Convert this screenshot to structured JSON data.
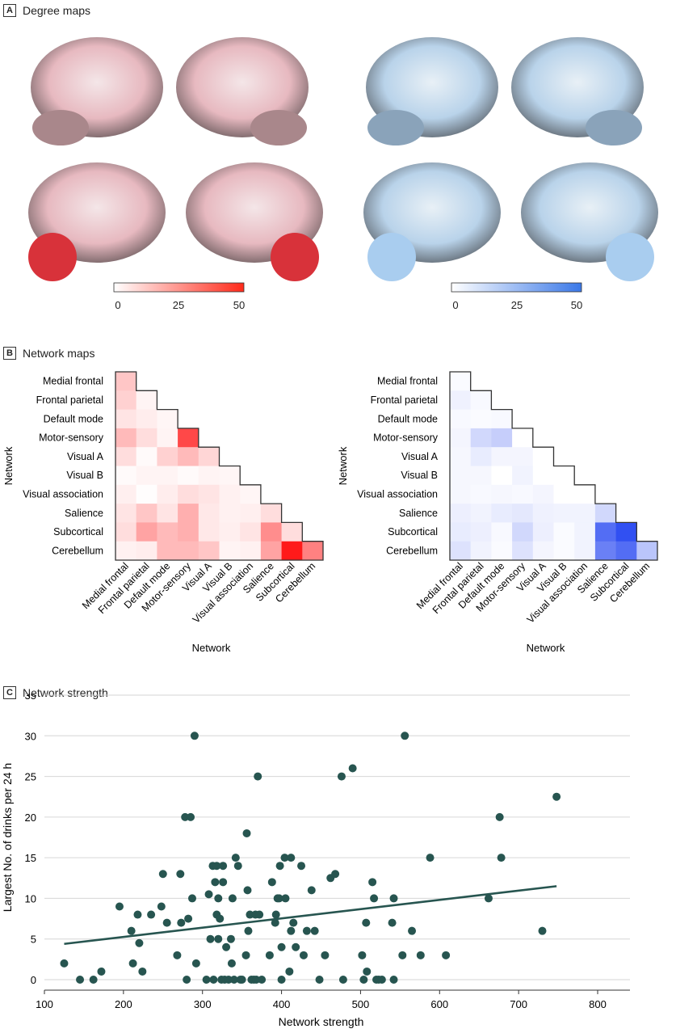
{
  "panels": {
    "a": {
      "letter": "A",
      "title": "Degree maps"
    },
    "b": {
      "letter": "B",
      "title": "Network maps"
    },
    "c": {
      "letter": "C",
      "title": "Network strength"
    }
  },
  "colorbars": [
    {
      "ticks": [
        "0",
        "25",
        "50"
      ],
      "color_low": "#ffffff",
      "color_high": "#ff2a1a"
    },
    {
      "ticks": [
        "0",
        "25",
        "50"
      ],
      "color_low": "#ffffff",
      "color_high": "#3a78e8"
    }
  ],
  "chart_data": [
    {
      "type": "heatmap",
      "xlabel": "Network",
      "ylabel": "Network",
      "labels": [
        "Medial frontal",
        "Frontal parietal",
        "Default mode",
        "Motor-sensory",
        "Visual A",
        "Visual B",
        "Visual association",
        "Salience",
        "Subcortical",
        "Cerebellum"
      ],
      "color": "#ff1a1a",
      "scale": [
        0,
        1
      ],
      "values": [
        [
          0.25
        ],
        [
          0.2,
          0.05
        ],
        [
          0.12,
          0.08,
          0.04
        ],
        [
          0.3,
          0.15,
          0.05,
          0.8
        ],
        [
          0.15,
          0.02,
          0.2,
          0.3,
          0.18
        ],
        [
          0.02,
          0.05,
          0.05,
          0.02,
          0.05,
          0.04
        ],
        [
          0.07,
          0.01,
          0.08,
          0.15,
          0.12,
          0.06,
          0.04
        ],
        [
          0.12,
          0.25,
          0.12,
          0.35,
          0.1,
          0.06,
          0.07,
          0.15
        ],
        [
          0.15,
          0.4,
          0.3,
          0.35,
          0.1,
          0.07,
          0.12,
          0.5,
          0.15
        ],
        [
          0.06,
          0.08,
          0.3,
          0.3,
          0.25,
          0.05,
          0.06,
          0.4,
          1.0,
          0.55
        ]
      ]
    },
    {
      "type": "heatmap",
      "xlabel": "Network",
      "ylabel": "Network",
      "labels": [
        "Medial frontal",
        "Frontal parietal",
        "Default mode",
        "Motor-sensory",
        "Visual A",
        "Visual B",
        "Visual association",
        "Salience",
        "Subcortical",
        "Cerebellum"
      ],
      "color": "#1a3cf0",
      "scale": [
        0,
        1
      ],
      "values": [
        [
          0.02
        ],
        [
          0.07,
          0.03
        ],
        [
          0.03,
          0.02,
          0.03
        ],
        [
          0.05,
          0.2,
          0.25,
          0.0
        ],
        [
          0.04,
          0.1,
          0.05,
          0.05,
          0.0
        ],
        [
          0.04,
          0.04,
          0.0,
          0.06,
          0.0,
          0.0
        ],
        [
          0.04,
          0.03,
          0.04,
          0.03,
          0.05,
          0.0,
          0.0
        ],
        [
          0.08,
          0.06,
          0.1,
          0.12,
          0.07,
          0.06,
          0.06,
          0.2
        ],
        [
          0.1,
          0.08,
          0.03,
          0.2,
          0.08,
          0.02,
          0.06,
          0.75,
          0.9
        ],
        [
          0.15,
          0.06,
          0.02,
          0.15,
          0.05,
          0.02,
          0.06,
          0.65,
          0.75,
          0.3
        ]
      ]
    },
    {
      "type": "scatter",
      "xlabel": "Network strength",
      "ylabel": "Largest No. of drinks per 24 h",
      "xlim": [
        100,
        840
      ],
      "ylim": [
        0,
        35
      ],
      "xticks": [
        100,
        200,
        300,
        400,
        500,
        600,
        700,
        800
      ],
      "yticks": [
        0,
        5,
        10,
        15,
        20,
        25,
        30,
        35
      ],
      "grid": "horizontal",
      "color": "#275550",
      "trend": [
        [
          125,
          4.4
        ],
        [
          748,
          11.5
        ]
      ],
      "points": [
        [
          125,
          2
        ],
        [
          145,
          0
        ],
        [
          162,
          0
        ],
        [
          172,
          1
        ],
        [
          195,
          9
        ],
        [
          210,
          6
        ],
        [
          212,
          2
        ],
        [
          218,
          8
        ],
        [
          220,
          4.5
        ],
        [
          224,
          1
        ],
        [
          235,
          8
        ],
        [
          248,
          9
        ],
        [
          250,
          13
        ],
        [
          255,
          7
        ],
        [
          268,
          3
        ],
        [
          272,
          13
        ],
        [
          273,
          7
        ],
        [
          278,
          20
        ],
        [
          280,
          0
        ],
        [
          282,
          7.5
        ],
        [
          285,
          20
        ],
        [
          287,
          10
        ],
        [
          290,
          30
        ],
        [
          292,
          2
        ],
        [
          305,
          0
        ],
        [
          308,
          10.5
        ],
        [
          310,
          5
        ],
        [
          313,
          14
        ],
        [
          314,
          0
        ],
        [
          316,
          12
        ],
        [
          318,
          8
        ],
        [
          318,
          14
        ],
        [
          320,
          5
        ],
        [
          320,
          10
        ],
        [
          322,
          7.5
        ],
        [
          324,
          0
        ],
        [
          326,
          12
        ],
        [
          326,
          14
        ],
        [
          328,
          0
        ],
        [
          330,
          4
        ],
        [
          333,
          0
        ],
        [
          336,
          5
        ],
        [
          337,
          2
        ],
        [
          338,
          10
        ],
        [
          340,
          0
        ],
        [
          342,
          15
        ],
        [
          345,
          14
        ],
        [
          348,
          0
        ],
        [
          350,
          0
        ],
        [
          355,
          3
        ],
        [
          356,
          18
        ],
        [
          357,
          11
        ],
        [
          358,
          6
        ],
        [
          360,
          8
        ],
        [
          362,
          0
        ],
        [
          365,
          0
        ],
        [
          367,
          8
        ],
        [
          368,
          0
        ],
        [
          370,
          25
        ],
        [
          372,
          8
        ],
        [
          375,
          0
        ],
        [
          385,
          3
        ],
        [
          388,
          12
        ],
        [
          392,
          7
        ],
        [
          393,
          8
        ],
        [
          395,
          10
        ],
        [
          397,
          10
        ],
        [
          398,
          14
        ],
        [
          400,
          0
        ],
        [
          400,
          4
        ],
        [
          404,
          15
        ],
        [
          405,
          10
        ],
        [
          410,
          1
        ],
        [
          412,
          6
        ],
        [
          412,
          15
        ],
        [
          415,
          7
        ],
        [
          418,
          4
        ],
        [
          425,
          14
        ],
        [
          428,
          3
        ],
        [
          432,
          6
        ],
        [
          438,
          11
        ],
        [
          442,
          6
        ],
        [
          448,
          0
        ],
        [
          455,
          3
        ],
        [
          462,
          12.5
        ],
        [
          468,
          13
        ],
        [
          476,
          25
        ],
        [
          478,
          0
        ],
        [
          490,
          26
        ],
        [
          502,
          3
        ],
        [
          504,
          0
        ],
        [
          507,
          7
        ],
        [
          508,
          1
        ],
        [
          515,
          12
        ],
        [
          517,
          10
        ],
        [
          520,
          0
        ],
        [
          523,
          0
        ],
        [
          527,
          0
        ],
        [
          540,
          7
        ],
        [
          542,
          10
        ],
        [
          542,
          0
        ],
        [
          553,
          3
        ],
        [
          556,
          30
        ],
        [
          565,
          6
        ],
        [
          576,
          3
        ],
        [
          588,
          15
        ],
        [
          608,
          3
        ],
        [
          662,
          10
        ],
        [
          676,
          20
        ],
        [
          678,
          15
        ],
        [
          730,
          6
        ],
        [
          748,
          22.5
        ]
      ]
    }
  ]
}
